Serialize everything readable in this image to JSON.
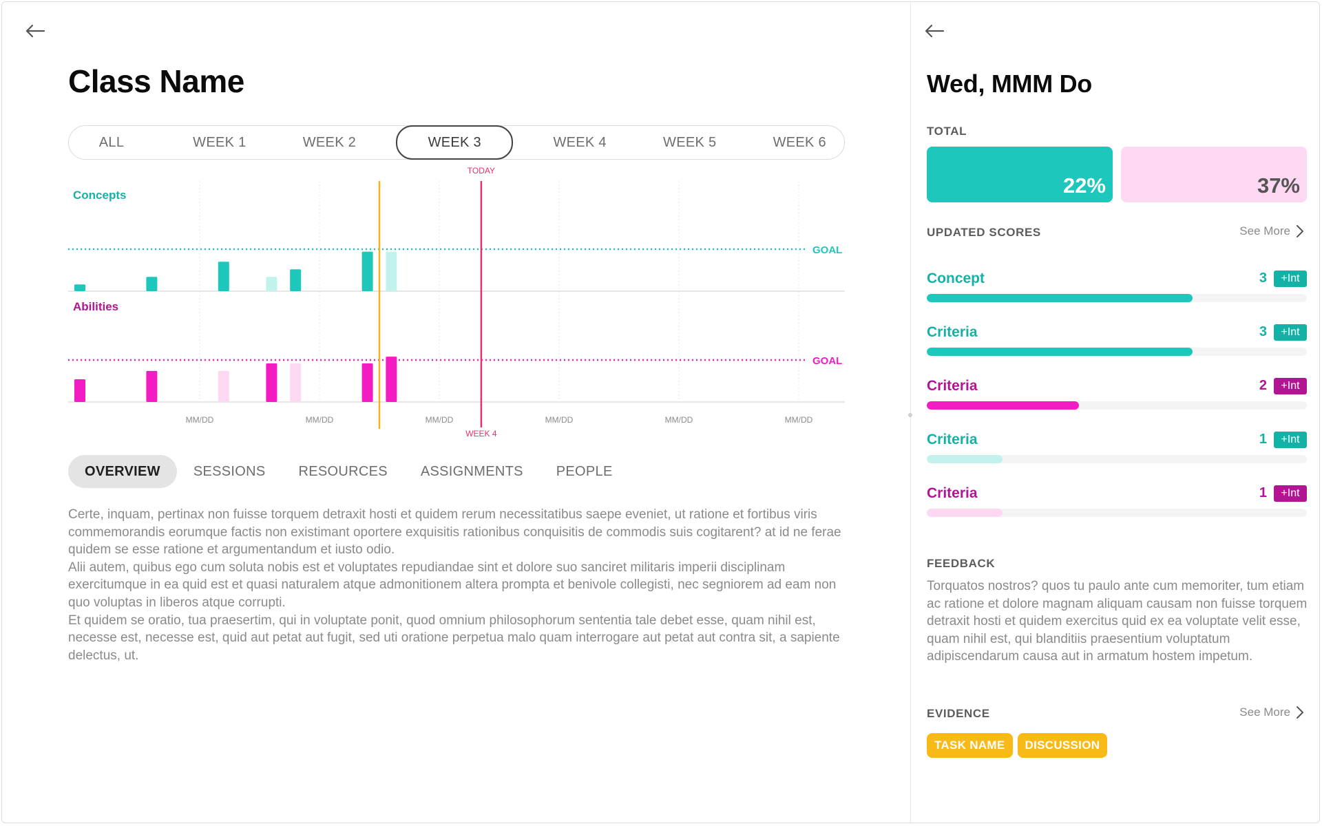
{
  "left": {
    "title": "Class Name",
    "week_tabs": [
      "ALL",
      "WEEK 1",
      "WEEK 2",
      "WEEK 3",
      "WEEK 4",
      "WEEK 5",
      "WEEK 6"
    ],
    "active_week": "WEEK 3",
    "content_tabs": [
      "OVERVIEW",
      "SESSIONS",
      "RESOURCES",
      "ASSIGNMENTS",
      "PEOPLE"
    ],
    "active_content_tab": "OVERVIEW",
    "overview_paragraphs": [
      "Certe, inquam, pertinax non fuisse torquem detraxit hosti et quidem rerum necessitatibus saepe eveniet, ut ratione et fortibus viris commemorandis eorumque factis non existimant oportere exquisitis rationibus conquisitis de commodis suis cogitarent? at id ne ferae quidem se esse ratione et argumentandum et iusto odio.",
      "Alii autem, quibus ego cum soluta nobis est et voluptates repudiandae sint et dolore suo sanciret militaris imperii disciplinam exercitumque in ea quid est et quasi naturalem atque admonitionem altera prompta et benivole collegisti, nec segniorem ad eam non quo voluptas in liberos atque corrupti.",
      "Et quidem se oratio, tua praesertim, qui in voluptate ponit, quod omnium philosophorum sententia tale debet esse, quam nihil est, necesse est, necesse est, quid aut petat aut fugit, sed uti oratione perpetua malo quam interrogare aut petat aut contra sit, a sapiente delectus, ut."
    ]
  },
  "chart_data": {
    "type": "bar",
    "panels": [
      {
        "name": "Concepts",
        "goal_label": "GOAL",
        "bars": [
          {
            "x": 0.0,
            "value": 0.16,
            "tone": "solid"
          },
          {
            "x": 0.6,
            "value": 0.34,
            "tone": "solid"
          },
          {
            "x": 1.2,
            "value": 0.7,
            "tone": "solid"
          },
          {
            "x": 1.6,
            "value": 0.34,
            "tone": "light"
          },
          {
            "x": 1.8,
            "value": 0.52,
            "tone": "solid"
          },
          {
            "x": 2.4,
            "value": 0.94,
            "tone": "solid"
          },
          {
            "x": 2.6,
            "value": 0.94,
            "tone": "light"
          }
        ]
      },
      {
        "name": "Abilities",
        "goal_label": "GOAL",
        "bars": [
          {
            "x": 0.0,
            "value": 0.54,
            "tone": "solid"
          },
          {
            "x": 0.6,
            "value": 0.74,
            "tone": "solid"
          },
          {
            "x": 1.2,
            "value": 0.74,
            "tone": "light"
          },
          {
            "x": 1.6,
            "value": 0.92,
            "tone": "solid"
          },
          {
            "x": 1.8,
            "value": 0.92,
            "tone": "light"
          },
          {
            "x": 2.4,
            "value": 0.92,
            "tone": "solid"
          },
          {
            "x": 2.6,
            "value": 1.08,
            "tone": "solid"
          }
        ]
      }
    ],
    "goal_value": 1.0,
    "x_tick_labels": [
      "MM/DD",
      "MM/DD",
      "MM/DD",
      "MM/DD",
      "MM/DD",
      "MM/DD"
    ],
    "today_label": "TODAY",
    "week_marker_label": "WEEK 4",
    "colors": {
      "concepts_solid": "#1dc7bc",
      "concepts_light": "#c2f2ec",
      "abilities_solid": "#f21cc2",
      "abilities_light": "#fdd8f2",
      "selected_line": "#f4b11c",
      "today_line": "#e5316d"
    }
  },
  "right": {
    "title": "Wed, MMM Do",
    "total_label": "TOTAL",
    "totals": [
      "22%",
      "37%"
    ],
    "updated_scores_label": "UPDATED SCORES",
    "see_more": "See More",
    "scores": [
      {
        "name": "Concept",
        "value": "3",
        "badge": "+Int",
        "fill": 0.7,
        "color": "#14b1a7",
        "bar": "#1dc7bc"
      },
      {
        "name": "Criteria",
        "value": "3",
        "badge": "+Int",
        "fill": 0.7,
        "color": "#14b1a7",
        "bar": "#1dc7bc"
      },
      {
        "name": "Criteria",
        "value": "2",
        "badge": "+Int",
        "fill": 0.4,
        "color": "#b21591",
        "bar": "#f21cc2"
      },
      {
        "name": "Criteria",
        "value": "1",
        "badge": "+Int",
        "fill": 0.2,
        "color": "#14b1a7",
        "bar": "#c2f2ec"
      },
      {
        "name": "Criteria",
        "value": "1",
        "badge": "+Int",
        "fill": 0.2,
        "color": "#b21591",
        "bar": "#fdd8f2"
      }
    ],
    "feedback_label": "FEEDBACK",
    "feedback_text": "Torquatos nostros? quos tu paulo ante cum memoriter, tum etiam ac ratione et dolore magnam aliquam causam non fuisse torquem detraxit hosti et quidem exercitus quid ex ea voluptate velit esse, quam nihil est, qui blanditiis praesentium voluptatum adipiscendarum causa aut in armatum hostem impetum.",
    "evidence_label": "EVIDENCE",
    "evidence_tags": [
      "TASK NAME",
      "DISCUSSION"
    ]
  }
}
